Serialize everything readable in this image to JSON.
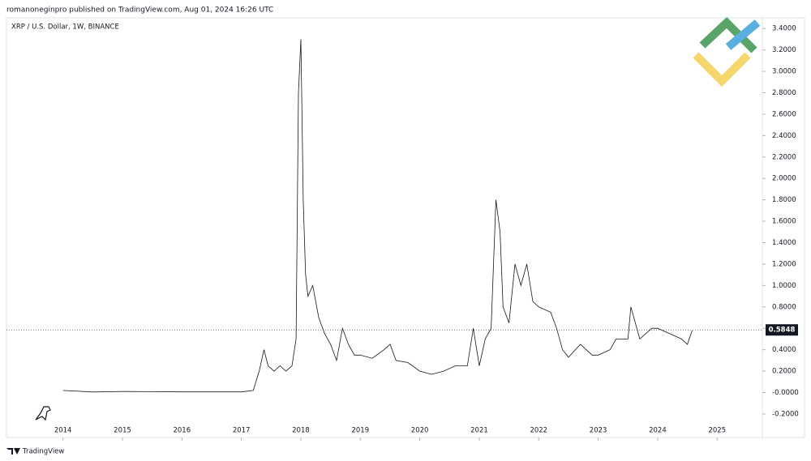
{
  "header": "romanoneginpro published on TradingView.com, Aug 01, 2024 16:26 UTC",
  "footer": "TradingView",
  "chart_data": {
    "type": "line",
    "title": "XRP / U.S. Dollar, 1W, BINANCE",
    "x": [
      2014.0,
      2014.5,
      2015.0,
      2015.5,
      2016.0,
      2016.5,
      2017.0,
      2017.2,
      2017.3,
      2017.38,
      2017.45,
      2017.55,
      2017.65,
      2017.75,
      2017.85,
      2017.92,
      2017.96,
      2018.0,
      2018.04,
      2018.08,
      2018.12,
      2018.2,
      2018.3,
      2018.4,
      2018.5,
      2018.6,
      2018.7,
      2018.8,
      2018.9,
      2019.0,
      2019.2,
      2019.4,
      2019.5,
      2019.6,
      2019.8,
      2020.0,
      2020.2,
      2020.4,
      2020.6,
      2020.8,
      2020.9,
      2021.0,
      2021.1,
      2021.2,
      2021.28,
      2021.35,
      2021.4,
      2021.5,
      2021.6,
      2021.7,
      2021.8,
      2021.9,
      2022.0,
      2022.2,
      2022.3,
      2022.4,
      2022.5,
      2022.7,
      2022.9,
      2023.0,
      2023.2,
      2023.3,
      2023.5,
      2023.55,
      2023.7,
      2023.9,
      2024.0,
      2024.2,
      2024.4,
      2024.5,
      2024.58
    ],
    "series": [
      {
        "name": "XRPUSD",
        "color": "#131722",
        "values": [
          0.02,
          0.005,
          0.01,
          0.008,
          0.006,
          0.006,
          0.006,
          0.02,
          0.2,
          0.4,
          0.25,
          0.2,
          0.25,
          0.2,
          0.25,
          0.5,
          2.8,
          3.3,
          1.8,
          1.1,
          0.9,
          1.0,
          0.7,
          0.55,
          0.45,
          0.3,
          0.6,
          0.45,
          0.35,
          0.35,
          0.32,
          0.4,
          0.45,
          0.3,
          0.28,
          0.2,
          0.17,
          0.2,
          0.25,
          0.25,
          0.6,
          0.25,
          0.5,
          0.6,
          1.8,
          1.5,
          0.8,
          0.65,
          1.2,
          1.0,
          1.2,
          0.85,
          0.8,
          0.75,
          0.6,
          0.4,
          0.33,
          0.45,
          0.35,
          0.35,
          0.4,
          0.5,
          0.5,
          0.8,
          0.5,
          0.6,
          0.6,
          0.55,
          0.5,
          0.45,
          0.58
        ]
      }
    ],
    "last_price": 0.5848,
    "xlim": [
      2013.05,
      2025.76
    ],
    "xticks": [
      2014,
      2015,
      2016,
      2017,
      2018,
      2019,
      2020,
      2021,
      2022,
      2023,
      2024,
      2025
    ],
    "ylim": [
      -0.42,
      3.5
    ],
    "yticks": [
      {
        "value": -0.2,
        "label": "-0.2000"
      },
      {
        "value": 0,
        "label": "-0.0000"
      },
      {
        "value": 0.2,
        "label": "0.2000"
      },
      {
        "value": 0.4,
        "label": "0.4000"
      },
      {
        "value": 0.6,
        "label": "0.6000"
      },
      {
        "value": 0.8,
        "label": "0.8000"
      },
      {
        "value": 1.0,
        "label": "1.0000"
      },
      {
        "value": 1.2,
        "label": "1.2000"
      },
      {
        "value": 1.4,
        "label": "1.4000"
      },
      {
        "value": 1.6,
        "label": "1.6000"
      },
      {
        "value": 1.8,
        "label": "1.8000"
      },
      {
        "value": 2.0,
        "label": "2.0000"
      },
      {
        "value": 2.2,
        "label": "2.2000"
      },
      {
        "value": 2.4,
        "label": "2.4000"
      },
      {
        "value": 2.6,
        "label": "2.6000"
      },
      {
        "value": 2.8,
        "label": "2.8000"
      },
      {
        "value": 3.0,
        "label": "3.0000"
      },
      {
        "value": 3.2,
        "label": "3.2000"
      },
      {
        "value": 3.4,
        "label": "3.4000"
      }
    ],
    "grid": false
  }
}
